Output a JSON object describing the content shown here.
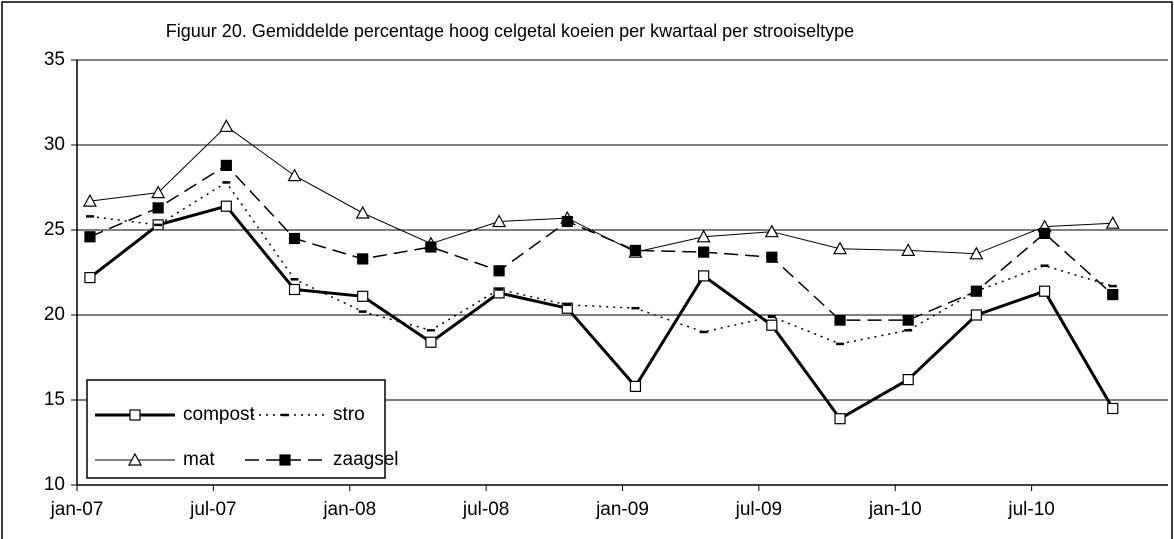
{
  "chart_data": {
    "type": "line",
    "title": "Figuur 20. Gemiddelde percentage hoog celgetal koeien per kwartaal per strooiseltype",
    "categories": [
      "jan-07",
      null,
      "jul-07",
      null,
      "jan-08",
      null,
      "jul-08",
      null,
      "jan-09",
      null,
      "jul-09",
      null,
      "jan-10",
      null,
      "jul-10",
      null
    ],
    "series": [
      {
        "name": "compost",
        "color": "#000000",
        "line": "solid",
        "width": 3,
        "marker": "square-open",
        "values": [
          22.2,
          25.3,
          26.4,
          21.5,
          21.1,
          18.4,
          21.3,
          20.4,
          15.8,
          22.3,
          19.4,
          13.9,
          16.2,
          20.0,
          21.4,
          14.5
        ]
      },
      {
        "name": "stro",
        "color": "#000000",
        "line": "dotted",
        "width": 1.5,
        "marker": "dash",
        "values": [
          25.8,
          25.3,
          27.8,
          22.1,
          20.2,
          19.1,
          21.5,
          20.6,
          20.4,
          19.0,
          19.9,
          18.3,
          19.1,
          21.4,
          22.9,
          21.7
        ]
      },
      {
        "name": "mat",
        "color": "#000000",
        "line": "solid",
        "width": 1,
        "marker": "triangle-open",
        "values": [
          26.7,
          27.2,
          31.1,
          28.2,
          26.0,
          24.2,
          25.5,
          25.7,
          23.7,
          24.6,
          24.9,
          23.9,
          23.8,
          23.6,
          25.2,
          25.4
        ]
      },
      {
        "name": "zaagsel",
        "color": "#000000",
        "line": "dashed",
        "width": 1.5,
        "marker": "square-filled",
        "values": [
          24.6,
          26.3,
          28.8,
          24.5,
          23.3,
          24.0,
          22.6,
          25.5,
          23.8,
          23.7,
          23.4,
          19.7,
          19.7,
          21.4,
          24.8,
          21.2
        ]
      }
    ],
    "ylim": [
      10,
      35
    ],
    "yticks": [
      10,
      15,
      20,
      25,
      30,
      35
    ],
    "grid": true,
    "legend": "lower-left"
  }
}
